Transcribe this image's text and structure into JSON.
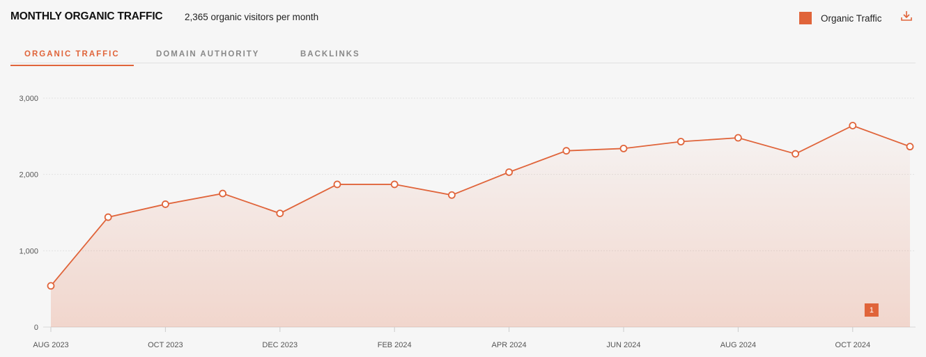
{
  "header": {
    "title": "MONTHLY ORGANIC TRAFFIC",
    "subtitle": "2,365 organic visitors per month",
    "legend_label": "Organic Traffic",
    "download_icon": "download-icon"
  },
  "tabs": [
    {
      "label": "ORGANIC TRAFFIC",
      "active": true
    },
    {
      "label": "DOMAIN AUTHORITY",
      "active": false
    },
    {
      "label": "BACKLINKS",
      "active": false
    }
  ],
  "colors": {
    "accent": "#e0643a",
    "grid": "#e2e2e2"
  },
  "chart_data": {
    "type": "area",
    "x": [
      "AUG 2023",
      "SEP 2023",
      "OCT 2023",
      "NOV 2023",
      "DEC 2023",
      "JAN 2024",
      "FEB 2024",
      "MAR 2024",
      "APR 2024",
      "MAY 2024",
      "JUN 2024",
      "JUL 2024",
      "AUG 2024",
      "SEP 2024",
      "OCT 2024",
      "NOV 2024"
    ],
    "x_tick_labels": [
      "AUG 2023",
      "OCT 2023",
      "DEC 2023",
      "FEB 2024",
      "APR 2024",
      "JUN 2024",
      "AUG 2024",
      "OCT 2024"
    ],
    "series": [
      {
        "name": "Organic Traffic",
        "values": [
          540,
          1440,
          1610,
          1750,
          1490,
          1870,
          1870,
          1730,
          2030,
          2310,
          2340,
          2430,
          2480,
          2270,
          2640,
          2365
        ]
      }
    ],
    "y_ticks": [
      "0",
      "1,000",
      "2,000",
      "3,000"
    ],
    "ylim": [
      0,
      3000
    ],
    "grid": true,
    "legend": "top-right",
    "annotations": [
      {
        "label": "1",
        "between": [
          "OCT 2024",
          "NOV 2024"
        ]
      }
    ]
  }
}
